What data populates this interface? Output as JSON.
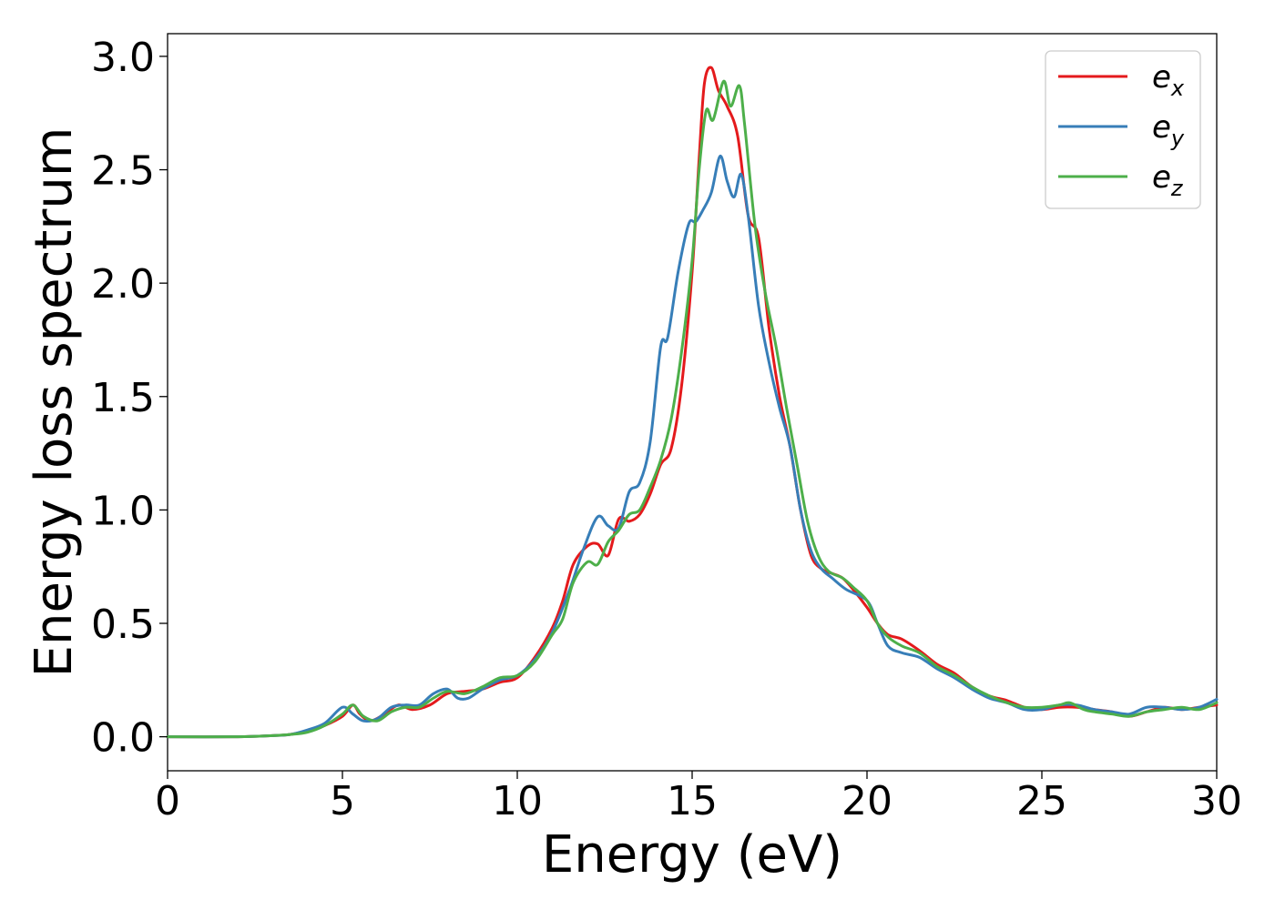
{
  "chart_data": {
    "type": "line",
    "xlabel": "Energy (eV)",
    "ylabel": "Energy loss spectrum",
    "xlim": [
      0,
      30
    ],
    "ylim": [
      -0.15,
      3.1
    ],
    "xticks": [
      0,
      5,
      10,
      15,
      20,
      25,
      30
    ],
    "xtick_labels": [
      "0",
      "5",
      "10",
      "15",
      "20",
      "25",
      "30"
    ],
    "yticks": [
      0.0,
      0.5,
      1.0,
      1.5,
      2.0,
      2.5,
      3.0
    ],
    "ytick_labels": [
      "0.0",
      "0.5",
      "1.0",
      "1.5",
      "2.0",
      "2.5",
      "3.0"
    ],
    "grid": false,
    "legend_position": "top-right",
    "series": [
      {
        "name": "e_x",
        "label_base": "e",
        "label_sub": "x",
        "color": "#e41a1c",
        "points": [
          [
            0,
            0.0
          ],
          [
            2,
            0.0
          ],
          [
            3,
            0.005
          ],
          [
            3.5,
            0.01
          ],
          [
            4,
            0.025
          ],
          [
            4.5,
            0.05
          ],
          [
            5,
            0.09
          ],
          [
            5.3,
            0.14
          ],
          [
            5.5,
            0.1
          ],
          [
            5.8,
            0.07
          ],
          [
            6.2,
            0.1
          ],
          [
            6.6,
            0.14
          ],
          [
            7,
            0.12
          ],
          [
            7.5,
            0.14
          ],
          [
            8,
            0.19
          ],
          [
            8.5,
            0.2
          ],
          [
            9,
            0.21
          ],
          [
            9.5,
            0.24
          ],
          [
            10,
            0.26
          ],
          [
            10.5,
            0.35
          ],
          [
            11,
            0.48
          ],
          [
            11.3,
            0.6
          ],
          [
            11.6,
            0.76
          ],
          [
            12,
            0.84
          ],
          [
            12.3,
            0.85
          ],
          [
            12.6,
            0.8
          ],
          [
            12.9,
            0.96
          ],
          [
            13.2,
            0.95
          ],
          [
            13.5,
            0.98
          ],
          [
            13.8,
            1.07
          ],
          [
            14.1,
            1.2
          ],
          [
            14.4,
            1.27
          ],
          [
            14.7,
            1.55
          ],
          [
            15.0,
            2.05
          ],
          [
            15.2,
            2.55
          ],
          [
            15.35,
            2.88
          ],
          [
            15.55,
            2.95
          ],
          [
            15.75,
            2.85
          ],
          [
            16.0,
            2.78
          ],
          [
            16.3,
            2.65
          ],
          [
            16.6,
            2.3
          ],
          [
            16.9,
            2.2
          ],
          [
            17.2,
            1.8
          ],
          [
            17.5,
            1.5
          ],
          [
            17.8,
            1.28
          ],
          [
            18.1,
            1.0
          ],
          [
            18.4,
            0.8
          ],
          [
            18.7,
            0.74
          ],
          [
            19.0,
            0.72
          ],
          [
            19.3,
            0.7
          ],
          [
            19.6,
            0.65
          ],
          [
            20.0,
            0.57
          ],
          [
            20.3,
            0.5
          ],
          [
            20.6,
            0.45
          ],
          [
            21.0,
            0.43
          ],
          [
            21.5,
            0.38
          ],
          [
            22,
            0.32
          ],
          [
            22.5,
            0.28
          ],
          [
            23,
            0.22
          ],
          [
            23.5,
            0.18
          ],
          [
            24,
            0.16
          ],
          [
            24.5,
            0.13
          ],
          [
            25,
            0.12
          ],
          [
            25.5,
            0.13
          ],
          [
            26,
            0.13
          ],
          [
            26.5,
            0.12
          ],
          [
            27,
            0.11
          ],
          [
            27.5,
            0.09
          ],
          [
            28,
            0.11
          ],
          [
            28.5,
            0.13
          ],
          [
            29,
            0.12
          ],
          [
            29.5,
            0.13
          ],
          [
            30,
            0.14
          ]
        ]
      },
      {
        "name": "e_y",
        "label_base": "e",
        "label_sub": "y",
        "color": "#377eb8",
        "points": [
          [
            0,
            0.0
          ],
          [
            2,
            0.0
          ],
          [
            3,
            0.005
          ],
          [
            3.5,
            0.01
          ],
          [
            4,
            0.03
          ],
          [
            4.5,
            0.06
          ],
          [
            5.0,
            0.13
          ],
          [
            5.3,
            0.1
          ],
          [
            5.6,
            0.07
          ],
          [
            6.0,
            0.08
          ],
          [
            6.4,
            0.13
          ],
          [
            6.8,
            0.14
          ],
          [
            7.2,
            0.14
          ],
          [
            7.6,
            0.19
          ],
          [
            8.0,
            0.21
          ],
          [
            8.3,
            0.17
          ],
          [
            8.6,
            0.17
          ],
          [
            9.0,
            0.21
          ],
          [
            9.5,
            0.25
          ],
          [
            10,
            0.27
          ],
          [
            10.5,
            0.34
          ],
          [
            11,
            0.46
          ],
          [
            11.5,
            0.65
          ],
          [
            11.9,
            0.83
          ],
          [
            12.3,
            0.97
          ],
          [
            12.6,
            0.93
          ],
          [
            12.9,
            0.92
          ],
          [
            13.2,
            1.08
          ],
          [
            13.5,
            1.12
          ],
          [
            13.8,
            1.3
          ],
          [
            14.1,
            1.72
          ],
          [
            14.3,
            1.76
          ],
          [
            14.6,
            2.05
          ],
          [
            14.9,
            2.26
          ],
          [
            15.1,
            2.27
          ],
          [
            15.3,
            2.32
          ],
          [
            15.55,
            2.4
          ],
          [
            15.8,
            2.56
          ],
          [
            16.0,
            2.45
          ],
          [
            16.2,
            2.38
          ],
          [
            16.4,
            2.48
          ],
          [
            16.6,
            2.3
          ],
          [
            16.9,
            1.9
          ],
          [
            17.2,
            1.65
          ],
          [
            17.5,
            1.45
          ],
          [
            17.8,
            1.28
          ],
          [
            18.1,
            1.0
          ],
          [
            18.4,
            0.82
          ],
          [
            18.7,
            0.74
          ],
          [
            19.0,
            0.7
          ],
          [
            19.4,
            0.65
          ],
          [
            20.0,
            0.6
          ],
          [
            20.3,
            0.5
          ],
          [
            20.6,
            0.4
          ],
          [
            21.0,
            0.37
          ],
          [
            21.5,
            0.35
          ],
          [
            22,
            0.3
          ],
          [
            22.5,
            0.26
          ],
          [
            23,
            0.21
          ],
          [
            23.5,
            0.17
          ],
          [
            24,
            0.15
          ],
          [
            24.5,
            0.12
          ],
          [
            25,
            0.12
          ],
          [
            25.5,
            0.14
          ],
          [
            26,
            0.14
          ],
          [
            26.5,
            0.12
          ],
          [
            27,
            0.11
          ],
          [
            27.5,
            0.1
          ],
          [
            28,
            0.13
          ],
          [
            28.5,
            0.13
          ],
          [
            29,
            0.12
          ],
          [
            29.5,
            0.13
          ],
          [
            30,
            0.165
          ]
        ]
      },
      {
        "name": "e_z",
        "label_base": "e",
        "label_sub": "z",
        "color": "#4daf4a",
        "points": [
          [
            0,
            0.0
          ],
          [
            2,
            0.0
          ],
          [
            3,
            0.005
          ],
          [
            3.5,
            0.01
          ],
          [
            4,
            0.02
          ],
          [
            4.5,
            0.05
          ],
          [
            5.0,
            0.1
          ],
          [
            5.3,
            0.14
          ],
          [
            5.6,
            0.09
          ],
          [
            6.0,
            0.07
          ],
          [
            6.4,
            0.11
          ],
          [
            6.8,
            0.13
          ],
          [
            7.2,
            0.13
          ],
          [
            7.6,
            0.17
          ],
          [
            8.0,
            0.2
          ],
          [
            8.5,
            0.19
          ],
          [
            9.0,
            0.22
          ],
          [
            9.5,
            0.26
          ],
          [
            10,
            0.27
          ],
          [
            10.5,
            0.33
          ],
          [
            11,
            0.45
          ],
          [
            11.3,
            0.52
          ],
          [
            11.6,
            0.68
          ],
          [
            12.0,
            0.77
          ],
          [
            12.3,
            0.76
          ],
          [
            12.6,
            0.86
          ],
          [
            12.9,
            0.91
          ],
          [
            13.2,
            0.98
          ],
          [
            13.5,
            1.0
          ],
          [
            13.8,
            1.1
          ],
          [
            14.1,
            1.22
          ],
          [
            14.4,
            1.4
          ],
          [
            14.7,
            1.7
          ],
          [
            15.0,
            2.1
          ],
          [
            15.2,
            2.5
          ],
          [
            15.4,
            2.76
          ],
          [
            15.6,
            2.72
          ],
          [
            15.9,
            2.89
          ],
          [
            16.1,
            2.78
          ],
          [
            16.35,
            2.87
          ],
          [
            16.5,
            2.7
          ],
          [
            16.8,
            2.25
          ],
          [
            17.1,
            1.95
          ],
          [
            17.4,
            1.72
          ],
          [
            17.7,
            1.45
          ],
          [
            18.0,
            1.2
          ],
          [
            18.3,
            0.95
          ],
          [
            18.6,
            0.8
          ],
          [
            18.9,
            0.73
          ],
          [
            19.3,
            0.7
          ],
          [
            19.6,
            0.66
          ],
          [
            20.0,
            0.6
          ],
          [
            20.3,
            0.5
          ],
          [
            20.6,
            0.44
          ],
          [
            21.0,
            0.4
          ],
          [
            21.5,
            0.37
          ],
          [
            22,
            0.31
          ],
          [
            22.5,
            0.27
          ],
          [
            23,
            0.22
          ],
          [
            23.5,
            0.18
          ],
          [
            24,
            0.15
          ],
          [
            24.5,
            0.13
          ],
          [
            25,
            0.13
          ],
          [
            25.5,
            0.14
          ],
          [
            25.8,
            0.15
          ],
          [
            26.2,
            0.12
          ],
          [
            26.5,
            0.11
          ],
          [
            27,
            0.1
          ],
          [
            27.5,
            0.09
          ],
          [
            28,
            0.11
          ],
          [
            28.5,
            0.12
          ],
          [
            29,
            0.13
          ],
          [
            29.5,
            0.12
          ],
          [
            30,
            0.15
          ]
        ]
      }
    ]
  }
}
